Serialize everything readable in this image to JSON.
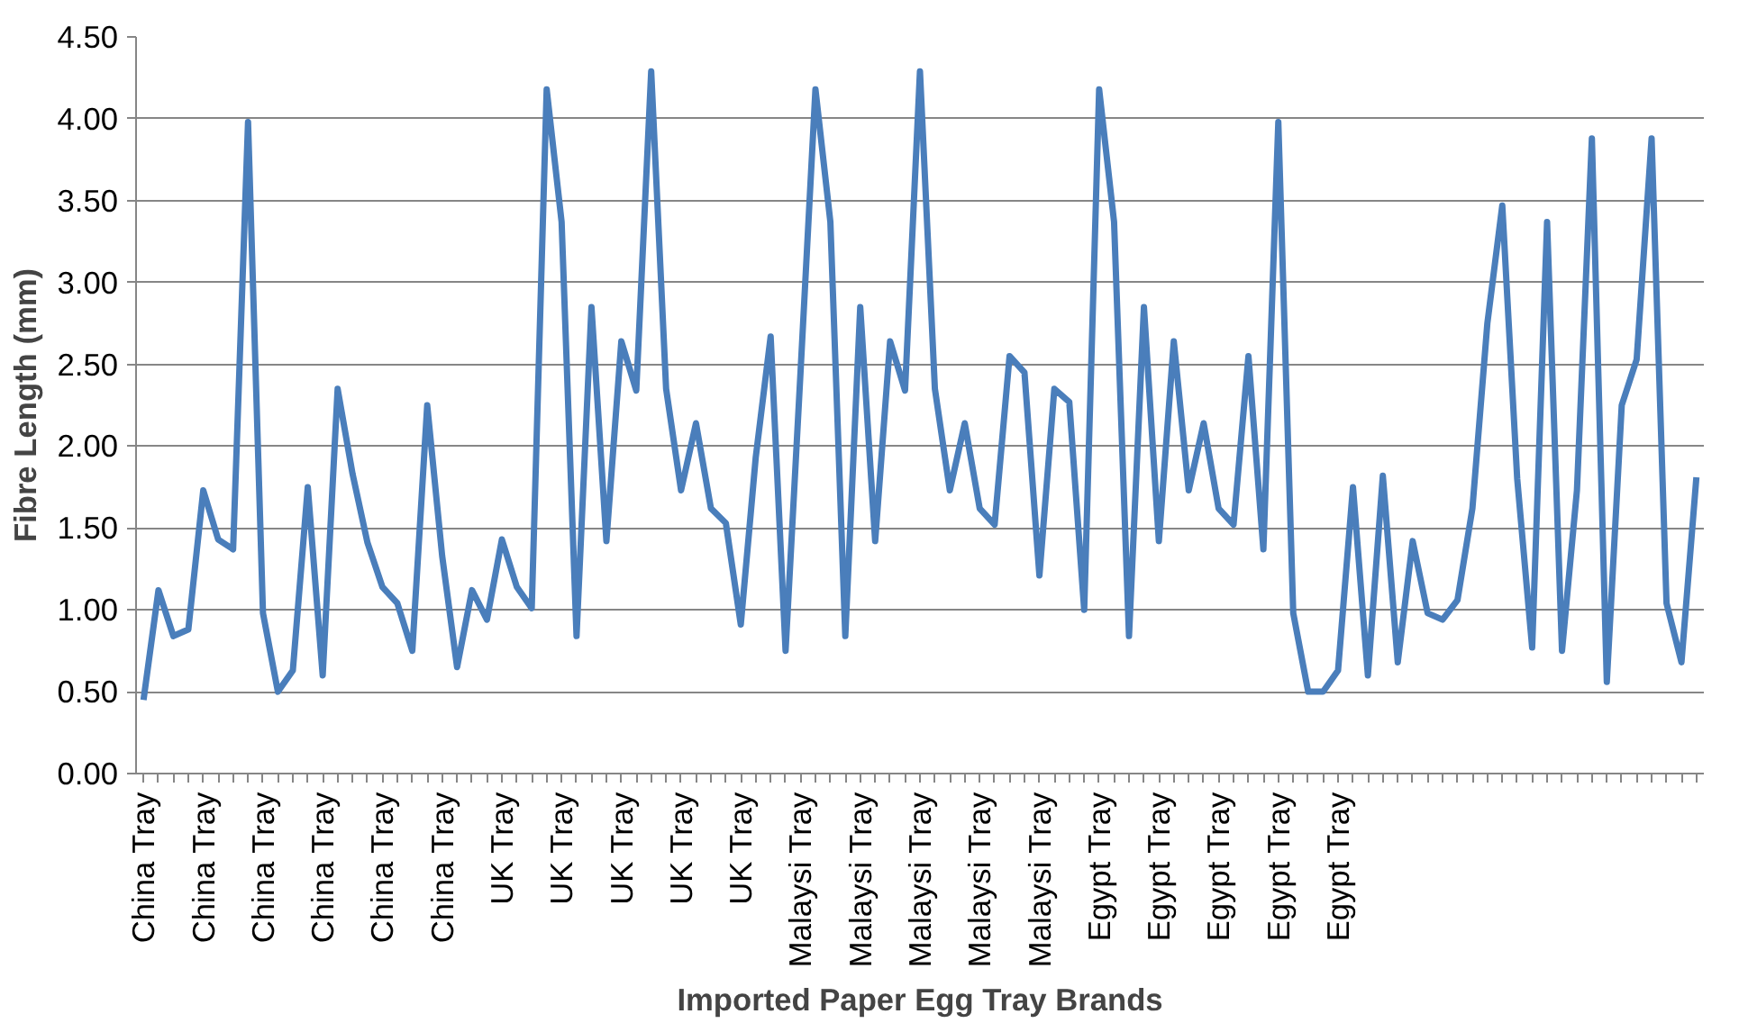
{
  "chart_data": {
    "type": "line",
    "xlabel": "Imported Paper Egg Tray Brands",
    "ylabel": "Fibre Length (mm)",
    "categories": [
      "China Tray",
      null,
      null,
      null,
      "China Tray",
      null,
      null,
      null,
      "China Tray",
      null,
      null,
      null,
      "China Tray",
      null,
      null,
      null,
      "China Tray",
      null,
      null,
      null,
      "China Tray",
      null,
      null,
      null,
      "UK Tray",
      null,
      null,
      null,
      "UK Tray",
      null,
      null,
      null,
      "UK Tray",
      null,
      null,
      null,
      "UK Tray",
      null,
      null,
      null,
      "UK Tray",
      null,
      null,
      null,
      "Malaysi Tray",
      null,
      null,
      null,
      "Malaysi Tray",
      null,
      null,
      null,
      "Malaysi Tray",
      null,
      null,
      null,
      "Malaysi Tray",
      null,
      null,
      null,
      "Malaysi Tray",
      null,
      null,
      null,
      "Egypt Tray",
      null,
      null,
      null,
      "Egypt Tray",
      null,
      null,
      null,
      "Egypt Tray",
      null,
      null,
      null,
      "Egypt Tray",
      null,
      null,
      null,
      "Egypt Tray",
      null,
      null,
      null,
      null,
      null,
      null,
      null,
      null,
      null,
      null,
      null,
      null,
      null,
      null,
      null,
      null,
      null,
      null,
      null,
      null,
      null,
      null,
      null,
      null
    ],
    "series": [
      {
        "color": "#4a7ebb",
        "values": [
          0.45,
          1.12,
          0.84,
          0.88,
          1.73,
          1.43,
          1.37,
          3.98,
          0.98,
          0.5,
          0.63,
          1.75,
          0.6,
          2.35,
          1.83,
          1.41,
          1.14,
          1.04,
          0.75,
          2.25,
          1.33,
          0.65,
          1.12,
          0.94,
          1.43,
          1.14,
          1.01,
          4.18,
          3.37,
          0.84,
          2.85,
          1.42,
          2.64,
          2.34,
          4.29,
          2.35,
          1.73,
          2.14,
          1.62,
          1.53,
          0.91,
          1.93,
          2.67,
          0.75,
          2.45,
          4.18,
          3.37,
          0.84,
          2.85,
          1.42,
          2.64,
          2.34,
          4.29,
          2.35,
          1.73,
          2.14,
          1.62,
          1.52,
          2.55,
          2.45,
          1.21,
          2.35,
          2.27,
          1.0,
          4.18,
          3.37,
          0.84,
          2.85,
          1.42,
          2.64,
          1.73,
          2.14,
          1.62,
          1.52,
          2.55,
          1.37,
          3.98,
          0.98,
          0.5,
          0.5,
          0.63,
          1.75,
          0.6,
          1.82,
          0.68,
          1.42,
          0.98,
          0.94,
          1.06,
          1.62,
          2.75,
          3.47,
          1.8,
          0.77,
          3.37,
          0.75,
          1.73,
          3.88,
          0.56,
          2.25,
          2.53,
          3.88,
          1.04,
          0.68,
          1.81
        ]
      }
    ],
    "ylim": [
      0,
      4.5
    ],
    "yticks": [
      {
        "value": 0,
        "label": "0.00"
      },
      {
        "value": 0.5,
        "label": "0.50"
      },
      {
        "value": 1,
        "label": "1.00"
      },
      {
        "value": 1.5,
        "label": "1.50"
      },
      {
        "value": 2,
        "label": "2.00"
      },
      {
        "value": 2.5,
        "label": "2.50"
      },
      {
        "value": 3,
        "label": "3.00"
      },
      {
        "value": 3.5,
        "label": "3.50"
      },
      {
        "value": 4,
        "label": "4.00"
      },
      {
        "value": 4.5,
        "label": "4.50"
      }
    ],
    "grid": "y",
    "marker": "none",
    "line_style": "solid"
  }
}
